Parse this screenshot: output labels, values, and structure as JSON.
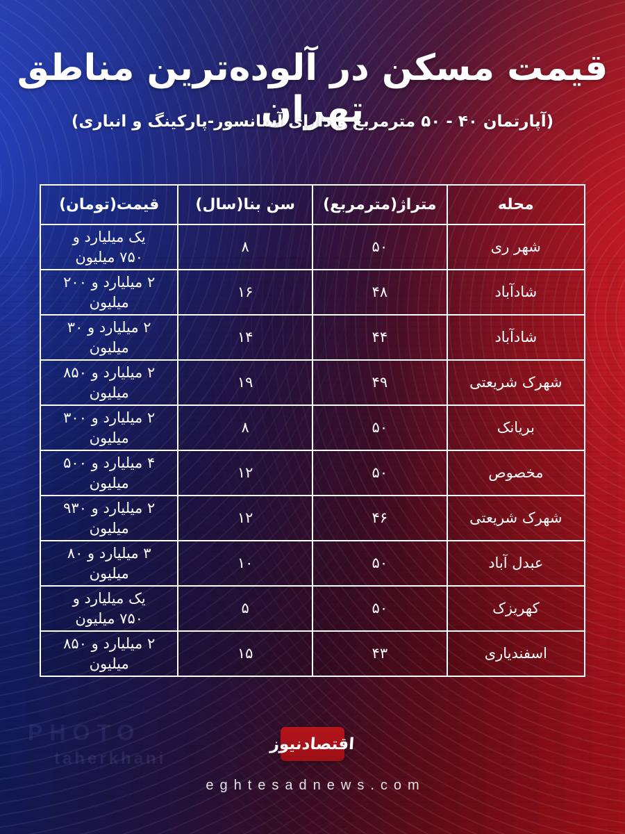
{
  "chart_data": {
    "type": "table",
    "title": "قیمت مسکن در آلوده‌ترین مناطق تهران",
    "subtitle": "(آپارتمان ۴۰ - ۵۰ مترمربع و دارای آسانسور-پارکینگ و انباری)",
    "direction": "rtl",
    "columns": [
      "محله",
      "متراژ(مترمربع)",
      "سن بنا(سال)",
      "قیمت(تومان)"
    ],
    "rows": [
      [
        "شهر ری",
        "۵۰",
        "۸",
        "یک میلیارد و ۷۵۰ میلیون"
      ],
      [
        "شادآباد",
        "۴۸",
        "۱۶",
        "۲ میلیارد و ۲۰۰ میلیون"
      ],
      [
        "شادآباد",
        "۴۴",
        "۱۴",
        "۲ میلیارد و ۳۰ میلیون"
      ],
      [
        "شهرک شریعتی",
        "۴۹",
        "۱۹",
        "۲ میلیارد و ۸۵۰ میلیون"
      ],
      [
        "بریانک",
        "۵۰",
        "۸",
        "۲ میلیارد و ۳۰۰ میلیون"
      ],
      [
        "مخصوص",
        "۵۰",
        "۱۲",
        "۴ میلیارد و ۵۰۰ میلیون"
      ],
      [
        "شهرک شریعتی",
        "۴۶",
        "۱۲",
        "۲ میلیارد و ۹۳۰ میلیون"
      ],
      [
        "عبدل آباد",
        "۵۰",
        "۱۰",
        "۳ میلیارد و ۸۰ میلیون"
      ],
      [
        "کهریزک",
        "۵۰",
        "۵",
        "یک میلیارد و ۷۵۰ میلیون"
      ],
      [
        "اسفندیاری",
        "۴۳",
        "۱۵",
        "۲ میلیارد و ۸۵۰ میلیون"
      ]
    ]
  },
  "footer": {
    "logo_text": "اقتصادنیوز",
    "website": "eghtesadnews.com"
  },
  "watermark": {
    "line1": "PHOTO",
    "line2": "taherkhani"
  },
  "colors": {
    "blue": "#1c2d92",
    "red": "#c9151f",
    "logo_red": "#a9131a",
    "text": "#ffffff",
    "table_border": "#ffffff"
  }
}
